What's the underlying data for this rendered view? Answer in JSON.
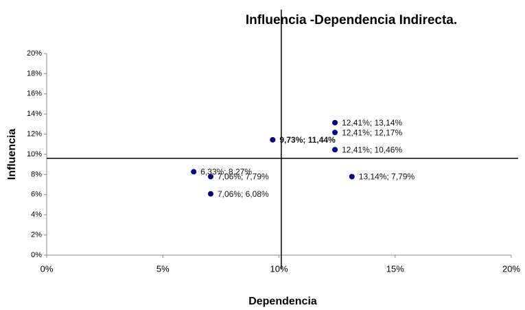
{
  "chart_data": {
    "type": "scatter",
    "title": "Influencia -Dependencia Indirecta.",
    "x_label": "Dependencia",
    "y_label": "Influencia",
    "color": "#000080",
    "x": [
      12.41,
      12.41,
      9.73,
      12.41,
      6.33,
      7.06,
      13.14,
      7.06
    ],
    "values": [
      13.14,
      12.17,
      11.44,
      10.46,
      8.27,
      7.79,
      7.79,
      6.08
    ],
    "value_labels": [
      "12,41%; 13,14%",
      "12,41%; 12,17%",
      "9,73%; 11,44%",
      "12,41%; 10,46%",
      "6,33%; 8,27%",
      "7,06%; 7,79%",
      "13,14%; 7,79%",
      "7,06%; 6,08%"
    ],
    "xlim": [
      0,
      20
    ],
    "ylim": [
      0,
      20
    ],
    "xticks": [
      {
        "value": 0,
        "label": "0%"
      },
      {
        "value": 5,
        "label": "5%"
      },
      {
        "value": 10,
        "label": "10%"
      },
      {
        "value": 15,
        "label": "15%"
      },
      {
        "value": 20,
        "label": "20%"
      }
    ],
    "yticks": [
      {
        "value": 0,
        "label": "0%"
      },
      {
        "value": 2,
        "label": "2%"
      },
      {
        "value": 4,
        "label": "4%"
      },
      {
        "value": 6,
        "label": "6%"
      },
      {
        "value": 8,
        "label": "8%"
      },
      {
        "value": 10,
        "label": "10%"
      },
      {
        "value": 12,
        "label": "12%"
      },
      {
        "value": 14,
        "label": "14%"
      },
      {
        "value": 16,
        "label": "16%"
      },
      {
        "value": 18,
        "label": "18%"
      },
      {
        "value": 20,
        "label": "20%"
      }
    ],
    "reference_x": 10.1,
    "reference_y": 9.6
  }
}
